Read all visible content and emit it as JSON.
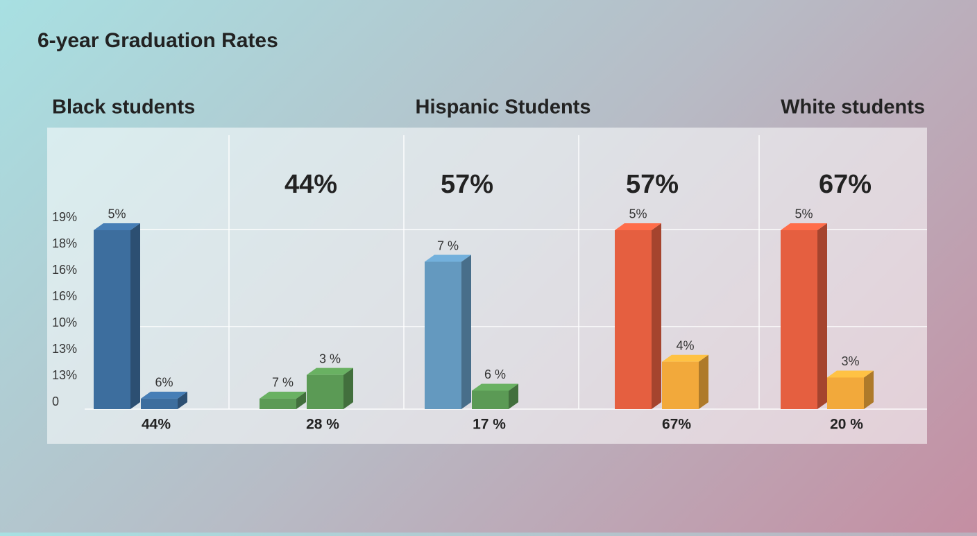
{
  "chart_data": {
    "type": "bar",
    "title": "6-year Graduation Rates",
    "group_labels": [
      "Black students",
      "Hispanic Students",
      "White students"
    ],
    "categories": [
      "44%",
      "28 %",
      "17 %",
      "67%",
      "20 %"
    ],
    "top_labels": [
      null,
      "44%",
      "57%",
      "57%",
      "67%"
    ],
    "ylim": [
      0,
      10.7
    ],
    "yticks": [
      {
        "value": 0,
        "label": "0"
      },
      {
        "value": 1,
        "label": "13%"
      },
      {
        "value": 2,
        "label": "13%"
      },
      {
        "value": 3,
        "label": "10%"
      },
      {
        "value": 4,
        "label": "16%"
      },
      {
        "value": 5,
        "label": "16%"
      },
      {
        "value": 6,
        "label": "18%"
      },
      {
        "value": 7,
        "label": "19%"
      }
    ],
    "series": [
      {
        "values": [
          6.8,
          0.4,
          5.6,
          6.8,
          6.8
        ],
        "bar_labels": [
          "5%",
          "7 %",
          "7 %",
          "5%",
          "5%"
        ],
        "colors": [
          "#3d6e9e",
          "#5b9a55",
          "#6499bf",
          "#e55f40",
          "#e55f40"
        ]
      },
      {
        "values": [
          0.4,
          1.3,
          0.7,
          1.8,
          1.2
        ],
        "bar_labels": [
          "6%",
          "3 %",
          "6 %",
          "4%",
          "3%"
        ],
        "colors": [
          "#3d6e9e",
          "#5b9a55",
          "#5b9a55",
          "#f2a93b",
          "#f2a93b"
        ]
      }
    ]
  }
}
